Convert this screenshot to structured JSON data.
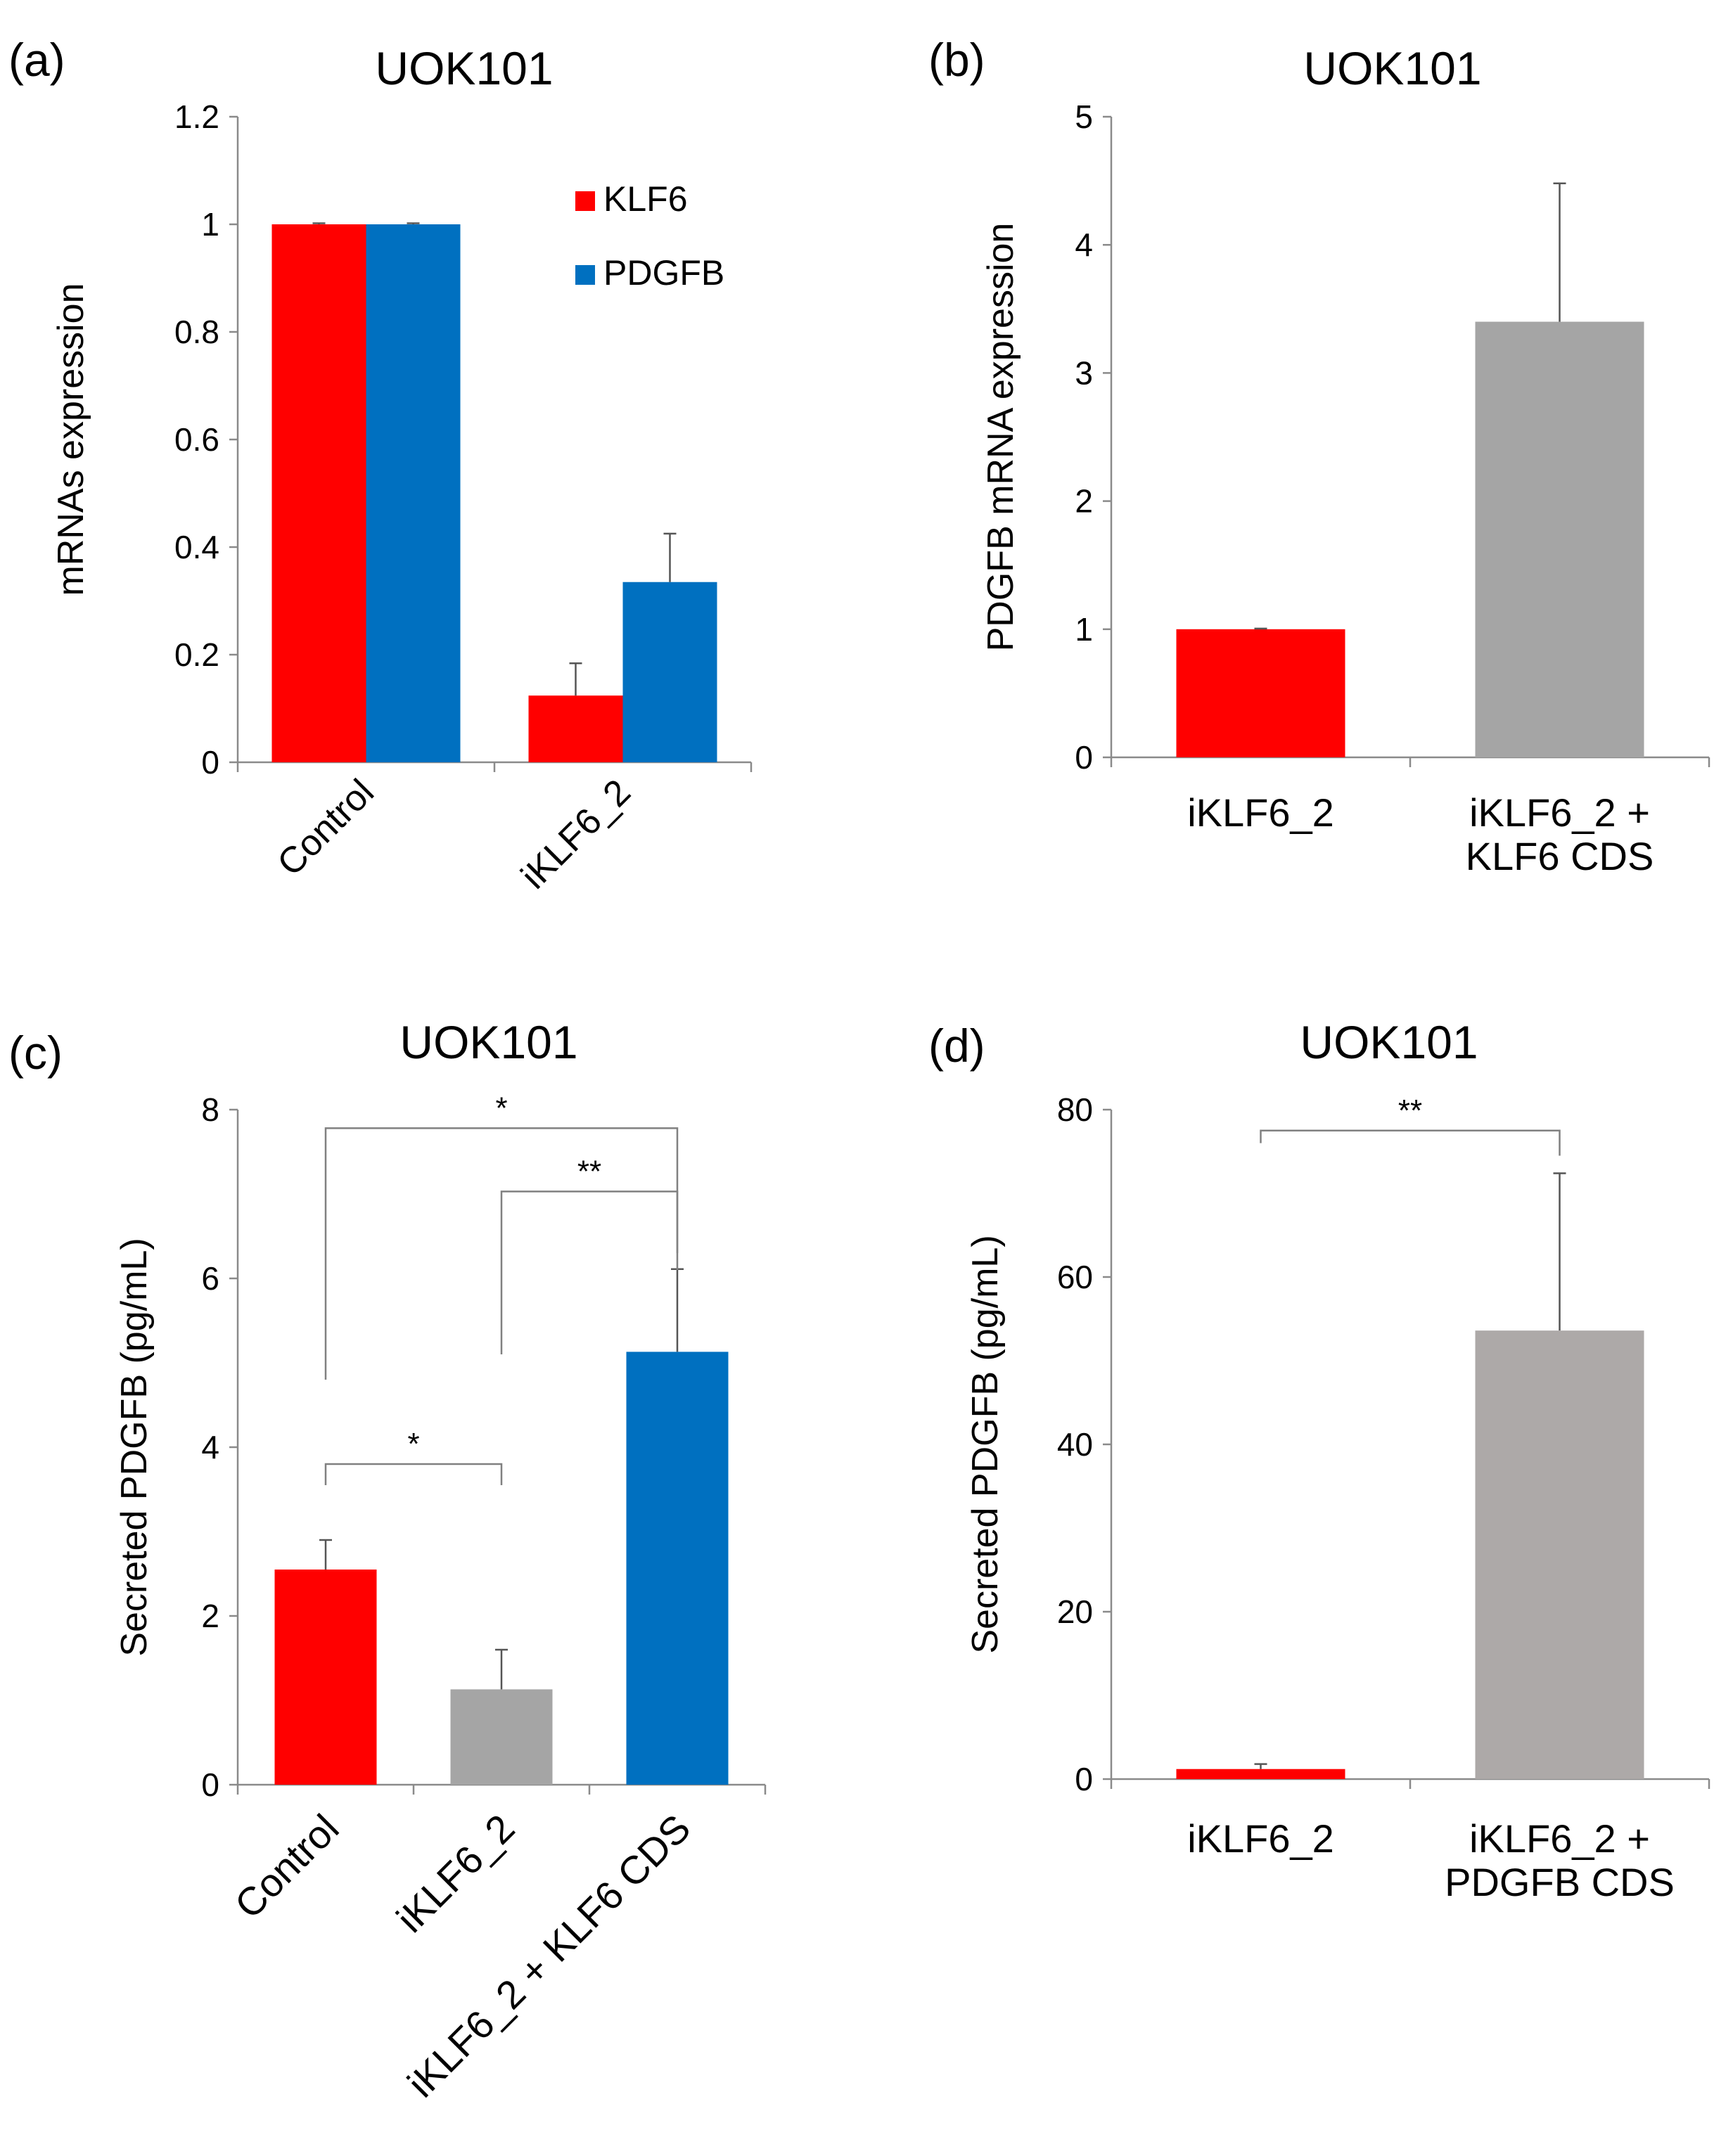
{
  "colors": {
    "red": "#ff0000",
    "blue": "#0070c0",
    "gray": "#a5a5a5",
    "gray_d": "#ada9a8",
    "axis": "#8a8a8a",
    "err": "#555555"
  },
  "chart_data": [
    {
      "panel": "a",
      "panel_label": "(a)",
      "type": "bar",
      "title": "UOK101",
      "ylabel": "mRNAs expression",
      "xlabel": "",
      "ylim": [
        0,
        1.2
      ],
      "y_ticks": [
        "0",
        "0.2",
        "0.4",
        "0.6",
        "0.8",
        "1",
        "1.2"
      ],
      "categories": [
        "Control",
        "iKLF6_2"
      ],
      "series": [
        {
          "name": "KLF6",
          "color_key": "red",
          "values": [
            1.0,
            0.124
          ],
          "errors": [
            0.002,
            0.06
          ]
        },
        {
          "name": "PDGFB",
          "color_key": "blue",
          "values": [
            1.0,
            0.335
          ],
          "errors": [
            0.002,
            0.09
          ]
        }
      ],
      "legend": [
        "KLF6",
        "PDGFB"
      ]
    },
    {
      "panel": "b",
      "panel_label": "(b)",
      "type": "bar",
      "title": "UOK101",
      "ylabel": "PDGFB mRNA expression",
      "xlabel": "",
      "ylim": [
        0,
        5
      ],
      "y_ticks": [
        "0",
        "1",
        "2",
        "3",
        "4",
        "5"
      ],
      "categories": [
        [
          "iKLF6_2"
        ],
        [
          "iKLF6_2 +",
          "KLF6 CDS"
        ]
      ],
      "values": [
        1.0,
        3.4
      ],
      "errors": [
        0.005,
        1.08
      ],
      "bar_colors": [
        "red",
        "gray"
      ]
    },
    {
      "panel": "c",
      "panel_label": "(c)",
      "type": "bar",
      "title": "UOK101",
      "ylabel": "Secreted PDGFB (pg/mL)",
      "xlabel": "",
      "ylim": [
        0,
        8
      ],
      "y_ticks": [
        "0",
        "2",
        "4",
        "6",
        "8"
      ],
      "categories": [
        "Control",
        "iKLF6_2",
        "iKLF6_2 + KLF6 CDS"
      ],
      "values": [
        2.55,
        1.13,
        5.13
      ],
      "errors": [
        0.35,
        0.47,
        0.98
      ],
      "bar_colors": [
        "red",
        "gray",
        "blue"
      ],
      "significance": [
        {
          "from": 0,
          "to": 1,
          "label": "*",
          "level": 3.8,
          "drop_from": 3.55,
          "drop_to": 3.55
        },
        {
          "from": 1,
          "to": 2,
          "label": "**",
          "level": 7.03,
          "drop_from": 5.1,
          "drop_to": 6.3
        },
        {
          "from": 0,
          "to": 2,
          "label": "*",
          "level": 7.78,
          "drop_from": 4.8,
          "drop_to": 6.1
        }
      ]
    },
    {
      "panel": "d",
      "panel_label": "(d)",
      "type": "bar",
      "title": "UOK101",
      "ylabel": "Secreted PDGFB (pg/mL)",
      "xlabel": "",
      "ylim": [
        0,
        80
      ],
      "y_ticks": [
        "0",
        "20",
        "40",
        "60",
        "80"
      ],
      "categories": [
        [
          "iKLF6_2"
        ],
        [
          "iKLF6_2 +",
          "PDGFB CDS"
        ]
      ],
      "values": [
        1.2,
        53.6
      ],
      "errors": [
        0.6,
        18.8
      ],
      "bar_colors": [
        "red",
        "gray_d"
      ],
      "significance": [
        {
          "from": 0,
          "to": 1,
          "label": "**",
          "level": 77.5,
          "drop_from": 76.0,
          "drop_to": 74.5
        }
      ]
    }
  ]
}
